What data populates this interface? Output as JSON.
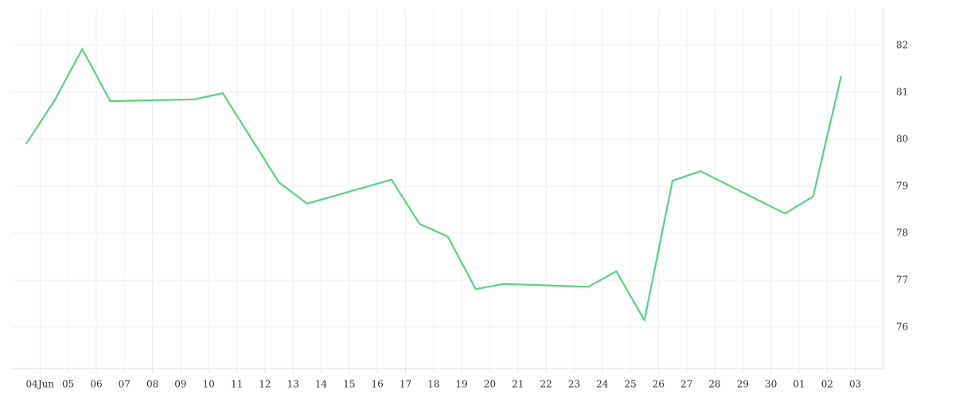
{
  "chart_data": {
    "type": "line",
    "x": [
      "06-03",
      "06-04",
      "06-05",
      "06-06",
      "06-09",
      "06-10",
      "06-12",
      "06-13",
      "06-16",
      "06-17",
      "06-18",
      "06-19",
      "06-20",
      "06-23",
      "06-24",
      "06-25",
      "06-26",
      "06-27",
      "06-30",
      "07-01",
      "07-02"
    ],
    "series": [
      {
        "color": "#56d47f",
        "values": [
          79.9,
          80.81,
          81.92,
          80.81,
          80.85,
          80.98,
          79.08,
          78.63,
          79.14,
          78.2,
          77.93,
          76.81,
          76.92,
          76.86,
          77.19,
          76.15,
          79.12,
          79.32,
          78.42,
          78.78,
          81.34
        ]
      }
    ],
    "xlim": [
      "06-03",
      "07-04"
    ],
    "xticks": [
      {
        "value": "06-04",
        "label": "04Jun"
      },
      {
        "value": "06-05",
        "label": "05"
      },
      {
        "value": "06-06",
        "label": "06"
      },
      {
        "value": "06-07",
        "label": "07"
      },
      {
        "value": "06-08",
        "label": "08"
      },
      {
        "value": "06-09",
        "label": "09"
      },
      {
        "value": "06-10",
        "label": "10"
      },
      {
        "value": "06-11",
        "label": "11"
      },
      {
        "value": "06-12",
        "label": "12"
      },
      {
        "value": "06-13",
        "label": "13"
      },
      {
        "value": "06-14",
        "label": "14"
      },
      {
        "value": "06-15",
        "label": "15"
      },
      {
        "value": "06-16",
        "label": "16"
      },
      {
        "value": "06-17",
        "label": "17"
      },
      {
        "value": "06-18",
        "label": "18"
      },
      {
        "value": "06-19",
        "label": "19"
      },
      {
        "value": "06-20",
        "label": "20"
      },
      {
        "value": "06-21",
        "label": "21"
      },
      {
        "value": "06-22",
        "label": "22"
      },
      {
        "value": "06-23",
        "label": "23"
      },
      {
        "value": "06-24",
        "label": "24"
      },
      {
        "value": "06-25",
        "label": "25"
      },
      {
        "value": "06-26",
        "label": "26"
      },
      {
        "value": "06-27",
        "label": "27"
      },
      {
        "value": "06-28",
        "label": "28"
      },
      {
        "value": "06-29",
        "label": "29"
      },
      {
        "value": "06-30",
        "label": "30"
      },
      {
        "value": "07-01",
        "label": "01"
      },
      {
        "value": "07-02",
        "label": "02"
      },
      {
        "value": "07-03",
        "label": "03"
      }
    ],
    "ylim": [
      75.12,
      82.76
    ],
    "yticks": [
      76,
      77,
      78,
      79,
      80,
      81,
      82
    ],
    "grid": true
  }
}
